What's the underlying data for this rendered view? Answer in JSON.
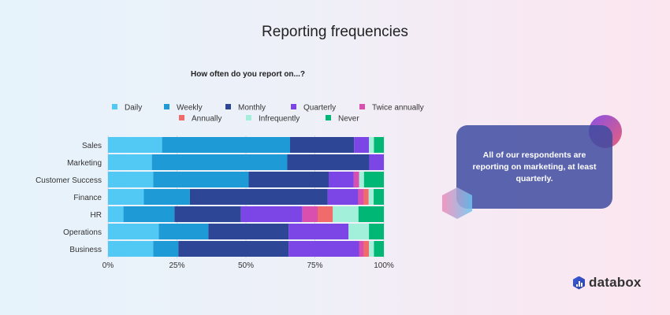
{
  "chart_data": {
    "type": "bar",
    "orientation": "horizontal",
    "stacked": true,
    "title": "Reporting frequencies",
    "subtitle": "How often do you report on...?",
    "categories": [
      "Sales",
      "Marketing",
      "Customer Success",
      "Finance",
      "HR",
      "Operations",
      "Business"
    ],
    "xlim": [
      0,
      100
    ],
    "x_ticks": [
      "0%",
      "25%",
      "50%",
      "75%",
      "100%"
    ],
    "grid": true,
    "legend_position": "top",
    "series": [
      {
        "name": "Daily",
        "color": "#52c9f5",
        "values": [
          19.6,
          15.9,
          16.4,
          13.0,
          5.6,
          18.4,
          16.4
        ]
      },
      {
        "name": "Weekly",
        "color": "#1e9ad6",
        "values": [
          46.4,
          49.1,
          34.6,
          16.7,
          18.5,
          18.0,
          9.1
        ]
      },
      {
        "name": "Monthly",
        "color": "#2e4696",
        "values": [
          23.2,
          29.7,
          29.0,
          49.9,
          24.1,
          29.1,
          40.0
        ]
      },
      {
        "name": "Quarterly",
        "color": "#7c45e6",
        "values": [
          5.4,
          5.3,
          9.1,
          11.1,
          22.2,
          21.7,
          25.5
        ]
      },
      {
        "name": "Twice annually",
        "color": "#d94fb0",
        "values": [
          0,
          0,
          1.9,
          2.0,
          5.6,
          0,
          1.7
        ]
      },
      {
        "name": "Annually",
        "color": "#f26b6b",
        "values": [
          0,
          0,
          0,
          1.8,
          5.5,
          0,
          1.9
        ]
      },
      {
        "name": "Infrequently",
        "color": "#a3f0da",
        "values": [
          1.8,
          0,
          1.8,
          1.8,
          9.3,
          7.4,
          1.8
        ]
      },
      {
        "name": "Never",
        "color": "#00b775",
        "values": [
          3.6,
          0,
          7.2,
          3.7,
          9.2,
          5.4,
          3.6
        ]
      }
    ]
  },
  "callout": {
    "text": "All of our respondents are reporting on marketing, at least quarterly."
  },
  "brand": {
    "name": "databox"
  }
}
